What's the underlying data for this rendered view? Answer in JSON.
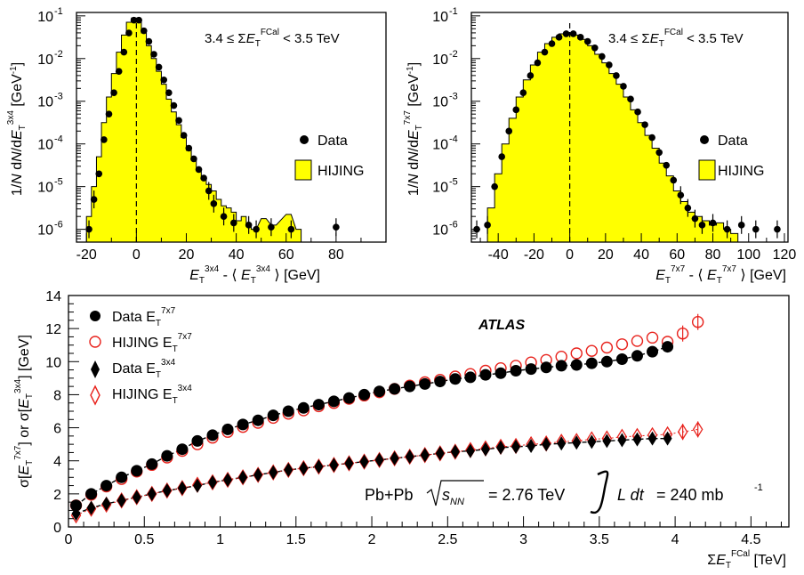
{
  "chart_data": [
    {
      "type": "histogram",
      "panel": "top-left",
      "annotation": "3.4 ≤ ΣE_T^FCal < 3.5 TeV",
      "ylabel": "1/N dN/dE_T^3x4 [GeV^-1]",
      "xlabel": "E_T^3x4 - ⟨ E_T^3x4 ⟩ [GeV]",
      "xlim": [
        -24,
        100
      ],
      "ylim_log10": [
        -6.3,
        -0.92
      ],
      "yscale": "log",
      "x_ticks": [
        "-20",
        "0",
        "20",
        "40",
        "60",
        "80"
      ],
      "y_ticks": [
        "10^-6",
        "10^-5",
        "10^-4",
        "10^-3",
        "10^-2",
        "10^-1"
      ],
      "legend": [
        "Data",
        "HIJING"
      ],
      "legend_position": "right",
      "mean_line_x": 0,
      "series": [
        {
          "name": "Data",
          "marker": "circle",
          "x": [
            -19,
            -17,
            -15,
            -13,
            -11,
            -9,
            -7,
            -5,
            -3,
            -1,
            1,
            3,
            5,
            7,
            9,
            11,
            13,
            15,
            17,
            19,
            21,
            23,
            25,
            27,
            29,
            31,
            35,
            39,
            45,
            48,
            54,
            62,
            80
          ],
          "log10y": [
            -6.0,
            -5.3,
            -4.7,
            -3.9,
            -3.3,
            -2.8,
            -2.3,
            -1.85,
            -1.4,
            -1.1,
            -1.1,
            -1.35,
            -1.6,
            -1.9,
            -2.2,
            -2.5,
            -2.8,
            -3.1,
            -3.45,
            -3.8,
            -4.1,
            -4.35,
            -4.6,
            -4.8,
            -5.1,
            -5.4,
            -5.7,
            -5.85,
            -5.9,
            -6.0,
            -5.95,
            -6.0,
            -5.95
          ]
        },
        {
          "name": "HIJING",
          "style": "filled-step",
          "color": "#ffff00",
          "x": [
            -21,
            -19,
            -17,
            -15,
            -13,
            -11,
            -9,
            -7,
            -5,
            -3,
            -1,
            1,
            3,
            5,
            7,
            9,
            11,
            13,
            15,
            17,
            19,
            21,
            23,
            25,
            27,
            29,
            31,
            33,
            35,
            37,
            39,
            41,
            43,
            45,
            47,
            51,
            55,
            61,
            65
          ],
          "log10y": [
            -6.3,
            -5.7,
            -5.0,
            -4.3,
            -3.5,
            -2.9,
            -2.35,
            -1.85,
            -1.45,
            -1.15,
            -1.05,
            -1.15,
            -1.4,
            -1.7,
            -2.0,
            -2.3,
            -2.6,
            -2.95,
            -3.25,
            -3.55,
            -3.85,
            -4.15,
            -4.35,
            -4.6,
            -4.8,
            -4.95,
            -5.1,
            -5.3,
            -5.45,
            -5.5,
            -5.6,
            -5.8,
            -5.7,
            -5.9,
            -6.0,
            -5.75,
            -5.9,
            -5.65,
            -6.0
          ]
        }
      ]
    },
    {
      "type": "histogram",
      "panel": "top-right",
      "annotation": "3.4 ≤ ΣE_T^FCal < 3.5 TeV",
      "ylabel": "1/N dN/dE_T^7x7 [GeV^-1]",
      "xlabel": "E_T^7x7 - ⟨ E_T^7x7 ⟩ [GeV]",
      "xlim": [
        -55,
        122
      ],
      "ylim_log10": [
        -6.3,
        -0.92
      ],
      "yscale": "log",
      "x_ticks": [
        "-40",
        "-20",
        "0",
        "20",
        "40",
        "60",
        "80",
        "100",
        "120"
      ],
      "y_ticks": [
        "10^-6",
        "10^-5",
        "10^-4",
        "10^-3",
        "10^-2",
        "10^-1"
      ],
      "legend": [
        "Data",
        "HIJING"
      ],
      "legend_position": "right",
      "mean_line_x": 0,
      "series": [
        {
          "name": "Data",
          "marker": "circle",
          "x": [
            -52,
            -46,
            -42,
            -38,
            -34,
            -30,
            -26,
            -22,
            -18,
            -14,
            -10,
            -6,
            -2,
            2,
            6,
            10,
            14,
            18,
            22,
            26,
            30,
            34,
            38,
            42,
            46,
            50,
            54,
            58,
            62,
            66,
            70,
            74,
            80,
            88,
            96,
            104,
            116
          ],
          "log10y": [
            -6.0,
            -5.9,
            -5.0,
            -4.3,
            -3.7,
            -3.2,
            -2.8,
            -2.4,
            -2.1,
            -1.85,
            -1.65,
            -1.5,
            -1.42,
            -1.42,
            -1.5,
            -1.6,
            -1.75,
            -1.95,
            -2.15,
            -2.4,
            -2.65,
            -2.95,
            -3.25,
            -3.55,
            -3.85,
            -4.2,
            -4.5,
            -4.85,
            -5.2,
            -5.5,
            -5.75,
            -5.9,
            -5.85,
            -6.0,
            -5.9,
            -6.0,
            -6.0
          ]
        },
        {
          "name": "HIJING",
          "style": "filled-step",
          "color": "#ffff00",
          "x": [
            -48,
            -44,
            -40,
            -36,
            -32,
            -28,
            -24,
            -20,
            -16,
            -12,
            -8,
            -4,
            0,
            4,
            8,
            12,
            16,
            20,
            24,
            28,
            32,
            36,
            40,
            44,
            48,
            52,
            56,
            60,
            64,
            68,
            72,
            76,
            80,
            84,
            88,
            92
          ],
          "log10y": [
            -6.3,
            -5.5,
            -4.7,
            -4.0,
            -3.4,
            -2.9,
            -2.5,
            -2.15,
            -1.85,
            -1.65,
            -1.5,
            -1.42,
            -1.4,
            -1.45,
            -1.55,
            -1.7,
            -1.9,
            -2.1,
            -2.35,
            -2.6,
            -2.9,
            -3.2,
            -3.5,
            -3.8,
            -4.1,
            -4.45,
            -4.75,
            -5.1,
            -5.35,
            -5.6,
            -5.7,
            -5.8,
            -5.9,
            -5.85,
            -6.0,
            -6.1
          ]
        }
      ]
    },
    {
      "type": "scatter",
      "panel": "bottom",
      "atlas_label": "ATLAS",
      "ylabel": "σ[E_T^7x7] or σ[E_T^3x4] [GeV]",
      "xlabel": "ΣE_T^FCal [TeV]",
      "xlim": [
        0,
        4.75
      ],
      "ylim": [
        0,
        14
      ],
      "x_ticks": [
        "0",
        "0.5",
        "1",
        "1.5",
        "2",
        "2.5",
        "3",
        "3.5",
        "4",
        "4.5"
      ],
      "y_ticks": [
        "0",
        "2",
        "4",
        "6",
        "8",
        "10",
        "12",
        "14"
      ],
      "legend_position": "top-left",
      "info_text": "Pb+Pb",
      "info_energy": "= 2.76 TeV",
      "info_lumi": "= 240 mb",
      "series": [
        {
          "name": "Data E_T^7x7",
          "marker": "filled-circle",
          "color": "#000000",
          "x": [
            0.05,
            0.15,
            0.25,
            0.35,
            0.45,
            0.55,
            0.65,
            0.75,
            0.85,
            0.95,
            1.05,
            1.15,
            1.25,
            1.35,
            1.45,
            1.55,
            1.65,
            1.75,
            1.85,
            1.95,
            2.05,
            2.15,
            2.25,
            2.35,
            2.45,
            2.55,
            2.65,
            2.75,
            2.85,
            2.95,
            3.05,
            3.15,
            3.25,
            3.35,
            3.45,
            3.55,
            3.65,
            3.75,
            3.85,
            3.95
          ],
          "y": [
            1.3,
            2.0,
            2.5,
            3.0,
            3.4,
            3.8,
            4.3,
            4.7,
            5.2,
            5.55,
            5.9,
            6.2,
            6.45,
            6.75,
            7.0,
            7.2,
            7.4,
            7.6,
            7.8,
            8.0,
            8.2,
            8.35,
            8.5,
            8.65,
            8.8,
            8.95,
            9.05,
            9.2,
            9.3,
            9.45,
            9.55,
            9.65,
            9.75,
            9.8,
            9.9,
            10.0,
            10.15,
            10.35,
            10.6,
            10.9
          ]
        },
        {
          "name": "HIJING E_T^7x7",
          "marker": "open-circle",
          "color": "#e8221c",
          "x": [
            0.05,
            0.15,
            0.25,
            0.35,
            0.45,
            0.55,
            0.65,
            0.75,
            0.85,
            0.95,
            1.05,
            1.15,
            1.25,
            1.35,
            1.45,
            1.55,
            1.65,
            1.75,
            1.85,
            1.95,
            2.05,
            2.15,
            2.25,
            2.35,
            2.45,
            2.55,
            2.65,
            2.75,
            2.85,
            2.95,
            3.05,
            3.15,
            3.25,
            3.35,
            3.45,
            3.55,
            3.65,
            3.75,
            3.85,
            3.95,
            4.05,
            4.15
          ],
          "y": [
            1.3,
            1.95,
            2.45,
            2.9,
            3.35,
            3.75,
            4.2,
            4.6,
            5.0,
            5.4,
            5.75,
            6.05,
            6.3,
            6.6,
            6.85,
            7.05,
            7.3,
            7.5,
            7.75,
            7.95,
            8.15,
            8.35,
            8.55,
            8.75,
            8.9,
            9.1,
            9.25,
            9.45,
            9.6,
            9.75,
            9.95,
            10.1,
            10.3,
            10.5,
            10.65,
            10.85,
            11.05,
            11.25,
            11.45,
            11.2,
            11.7,
            12.4
          ]
        },
        {
          "name": "Data E_T^3x4",
          "marker": "filled-diamond",
          "color": "#000000",
          "x": [
            0.05,
            0.15,
            0.25,
            0.35,
            0.45,
            0.55,
            0.65,
            0.75,
            0.85,
            0.95,
            1.05,
            1.15,
            1.25,
            1.35,
            1.45,
            1.55,
            1.65,
            1.75,
            1.85,
            1.95,
            2.05,
            2.15,
            2.25,
            2.35,
            2.45,
            2.55,
            2.65,
            2.75,
            2.85,
            2.95,
            3.05,
            3.15,
            3.25,
            3.35,
            3.45,
            3.55,
            3.65,
            3.75,
            3.85,
            3.95
          ],
          "y": [
            0.8,
            1.15,
            1.4,
            1.6,
            1.8,
            2.0,
            2.2,
            2.35,
            2.5,
            2.7,
            2.85,
            3.0,
            3.15,
            3.3,
            3.45,
            3.55,
            3.65,
            3.75,
            3.85,
            3.95,
            4.05,
            4.15,
            4.25,
            4.35,
            4.45,
            4.55,
            4.6,
            4.7,
            4.8,
            4.85,
            4.9,
            5.0,
            5.05,
            5.1,
            5.15,
            5.2,
            5.25,
            5.3,
            5.35,
            5.35
          ]
        },
        {
          "name": "HIJING E_T^3x4",
          "marker": "open-diamond",
          "color": "#e8221c",
          "x": [
            0.05,
            0.15,
            0.25,
            0.35,
            0.45,
            0.55,
            0.65,
            0.75,
            0.85,
            0.95,
            1.05,
            1.15,
            1.25,
            1.35,
            1.45,
            1.55,
            1.65,
            1.75,
            1.85,
            1.95,
            2.05,
            2.15,
            2.25,
            2.35,
            2.45,
            2.55,
            2.65,
            2.75,
            2.85,
            2.95,
            3.05,
            3.15,
            3.25,
            3.35,
            3.45,
            3.55,
            3.65,
            3.75,
            3.85,
            3.95,
            4.05,
            4.15
          ],
          "y": [
            0.7,
            1.1,
            1.35,
            1.6,
            1.8,
            2.0,
            2.2,
            2.35,
            2.55,
            2.7,
            2.85,
            3.0,
            3.15,
            3.3,
            3.45,
            3.55,
            3.65,
            3.75,
            3.85,
            3.95,
            4.05,
            4.15,
            4.25,
            4.35,
            4.45,
            4.55,
            4.65,
            4.75,
            4.85,
            4.9,
            5.0,
            5.05,
            5.15,
            5.2,
            5.3,
            5.35,
            5.45,
            5.5,
            5.55,
            5.6,
            5.75,
            5.9
          ]
        }
      ]
    }
  ]
}
